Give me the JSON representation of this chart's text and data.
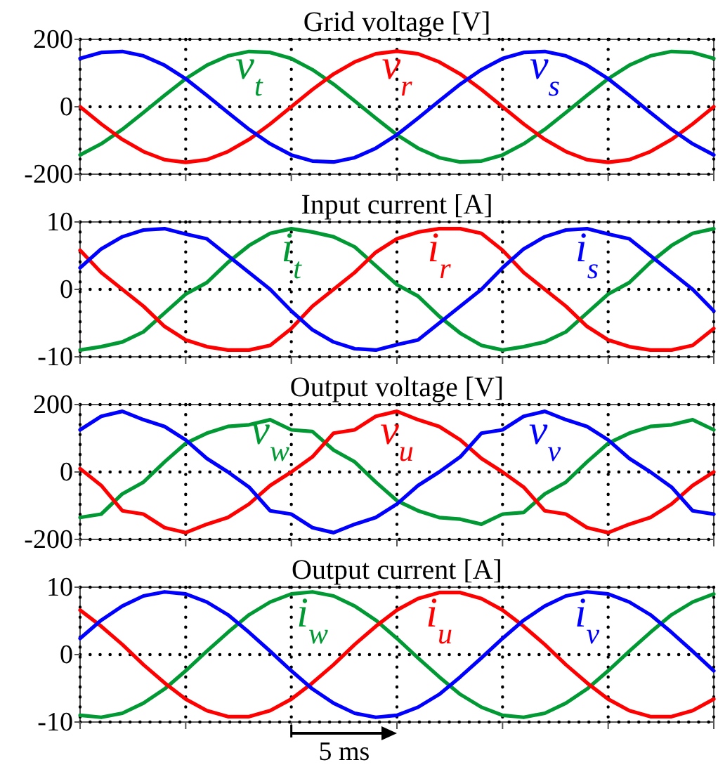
{
  "chart_data": [
    {
      "type": "line",
      "title": "Grid voltage [V]",
      "categories": [
        null,
        null,
        null,
        null,
        null,
        null,
        null,
        null,
        null,
        null,
        null,
        null,
        null,
        null,
        null,
        null,
        null,
        null,
        null,
        null,
        null,
        null,
        null,
        null,
        null,
        null,
        null,
        null,
        null,
        null,
        null
      ],
      "ylim": [
        -200,
        200
      ],
      "yticks": [
        -200,
        0,
        200
      ],
      "grid": true,
      "tick_labels": "y",
      "series": [
        {
          "name": "v$_{t}$",
          "color": "#009933",
          "values": [
            -143,
            -110,
            -67,
            -17,
            34,
            83,
            123,
            151,
            164,
            161,
            143,
            110,
            67,
            17,
            -34,
            -83,
            -123,
            -151,
            -164,
            -161,
            -143,
            -110,
            -67,
            -17,
            34,
            83,
            123,
            151,
            164,
            161,
            143
          ]
        },
        {
          "name": "v$_{r}$",
          "color": "#ff0000",
          "values": [
            0,
            -51,
            -97,
            -133,
            -157,
            -165,
            -157,
            -133,
            -97,
            -51,
            0,
            51,
            97,
            133,
            157,
            165,
            157,
            133,
            97,
            51,
            0,
            -51,
            -97,
            -133,
            -157,
            -165,
            -157,
            -133,
            -97,
            -51,
            0
          ]
        },
        {
          "name": "v$_{s}$",
          "color": "#0000ff",
          "values": [
            143,
            161,
            164,
            151,
            123,
            83,
            34,
            -17,
            -67,
            -110,
            -143,
            -161,
            -164,
            -151,
            -123,
            -83,
            -34,
            17,
            67,
            110,
            143,
            161,
            164,
            151,
            123,
            83,
            34,
            -17,
            -67,
            -110,
            -143
          ]
        }
      ]
    },
    {
      "type": "line",
      "title": "Input current [A]",
      "categories": [
        null,
        null,
        null,
        null,
        null,
        null,
        null,
        null,
        null,
        null,
        null,
        null,
        null,
        null,
        null,
        null,
        null,
        null,
        null,
        null,
        null,
        null,
        null,
        null,
        null,
        null,
        null,
        null,
        null,
        null,
        null
      ],
      "ylim": [
        -10,
        10
      ],
      "yticks": [
        -10,
        0,
        10
      ],
      "grid": true,
      "tick_labels": "y",
      "series": [
        {
          "name": "i$_{t}$",
          "color": "#009933",
          "values": [
            -9,
            -8.5,
            -7.8,
            -6.3,
            -3.5,
            -0.7,
            1,
            4,
            6.5,
            8.3,
            9,
            8.5,
            7.8,
            6.3,
            3.5,
            0.7,
            -1,
            -4,
            -6.5,
            -8.3,
            -9,
            -8.5,
            -7.8,
            -6.3,
            -3.5,
            -0.7,
            1,
            4,
            6.5,
            8.3,
            9
          ]
        },
        {
          "name": "i$_{r}$",
          "color": "#ff0000",
          "values": [
            5.8,
            2.5,
            0,
            -2.5,
            -5.5,
            -7.5,
            -8.5,
            -9,
            -9,
            -8.3,
            -5.8,
            -2.5,
            0,
            2.5,
            5.5,
            7.5,
            8.5,
            9,
            9,
            8.3,
            5.8,
            2.5,
            0,
            -2.5,
            -5.5,
            -7.5,
            -8.5,
            -9,
            -9,
            -8.3,
            -5.8
          ]
        },
        {
          "name": "i$_{s}$",
          "color": "#0000ff",
          "values": [
            3.2,
            6,
            7.8,
            8.8,
            9,
            8.2,
            7.5,
            5,
            2.5,
            0,
            -3.2,
            -6,
            -7.8,
            -8.8,
            -9,
            -8.2,
            -7.5,
            -5,
            -2.5,
            0,
            3.2,
            6,
            7.8,
            8.8,
            9,
            8.2,
            7.5,
            5,
            2.5,
            0,
            -3.2
          ]
        }
      ]
    },
    {
      "type": "line",
      "title": "Output voltage [V]",
      "categories": [
        null,
        null,
        null,
        null,
        null,
        null,
        null,
        null,
        null,
        null,
        null,
        null,
        null,
        null,
        null,
        null,
        null,
        null,
        null,
        null,
        null,
        null,
        null,
        null,
        null,
        null,
        null,
        null,
        null,
        null,
        null
      ],
      "ylim": [
        -200,
        200
      ],
      "yticks": [
        -200,
        0,
        200
      ],
      "grid": true,
      "tick_labels": "y",
      "series": [
        {
          "name": "v$_{w}$",
          "color": "#009933",
          "values": [
            -135,
            -125,
            -65,
            -30,
            30,
            85,
            115,
            135,
            140,
            155,
            125,
            120,
            65,
            30,
            -30,
            -85,
            -115,
            -135,
            -140,
            -155,
            -125,
            -120,
            -65,
            -30,
            30,
            85,
            115,
            135,
            140,
            155,
            125
          ]
        },
        {
          "name": "v$_{u}$",
          "color": "#ff0000",
          "values": [
            10,
            -40,
            -115,
            -125,
            -165,
            -180,
            -155,
            -135,
            -95,
            -40,
            0,
            45,
            115,
            125,
            165,
            180,
            155,
            135,
            95,
            40,
            0,
            -45,
            -115,
            -125,
            -165,
            -180,
            -155,
            -135,
            -95,
            -40,
            0
          ]
        },
        {
          "name": "v$_{v}$",
          "color": "#0000ff",
          "values": [
            125,
            165,
            180,
            155,
            135,
            95,
            40,
            0,
            -45,
            -115,
            -125,
            -165,
            -180,
            -155,
            -135,
            -95,
            -40,
            0,
            45,
            115,
            125,
            165,
            180,
            155,
            135,
            95,
            40,
            0,
            -45,
            -115,
            -125
          ]
        }
      ]
    },
    {
      "type": "line",
      "title": "Output current [A]",
      "categories": [
        null,
        null,
        null,
        null,
        null,
        null,
        null,
        null,
        null,
        null,
        null,
        null,
        null,
        null,
        null,
        null,
        null,
        null,
        null,
        null,
        null,
        null,
        null,
        null,
        null,
        null,
        null,
        null,
        null,
        null,
        null
      ],
      "ylim": [
        -10,
        10
      ],
      "yticks": [
        -10,
        0,
        10
      ],
      "grid": true,
      "tick_labels": "y",
      "annotations": [
        "5 ms"
      ],
      "series": [
        {
          "name": "i$_{w}$",
          "color": "#009933",
          "values": [
            -9,
            -9.3,
            -8.7,
            -7.2,
            -5.1,
            -2.4,
            0.5,
            3.3,
            5.9,
            7.8,
            9,
            9.3,
            8.7,
            7.2,
            5.1,
            2.4,
            -0.5,
            -3.3,
            -5.9,
            -7.8,
            -9,
            -9.3,
            -8.7,
            -7.2,
            -5.1,
            -2.4,
            0.5,
            3.3,
            5.9,
            7.8,
            9
          ]
        },
        {
          "name": "i$_{u}$",
          "color": "#ff0000",
          "values": [
            6.6,
            4.2,
            1.5,
            -1.5,
            -4.2,
            -6.6,
            -8.3,
            -9.2,
            -9.2,
            -8.3,
            -6.6,
            -4.2,
            -1.5,
            1.5,
            4.2,
            6.6,
            8.3,
            9.2,
            9.2,
            8.3,
            6.6,
            4.2,
            1.5,
            -1.5,
            -4.2,
            -6.6,
            -8.3,
            -9.2,
            -9.2,
            -8.3,
            -6.6
          ]
        },
        {
          "name": "i$_{v}$",
          "color": "#0000ff",
          "values": [
            2.4,
            5.1,
            7.2,
            8.7,
            9.3,
            9,
            7.8,
            5.9,
            3.3,
            0.5,
            -2.4,
            -5.1,
            -7.2,
            -8.7,
            -9.3,
            -9,
            -7.8,
            -5.9,
            -3.3,
            -0.5,
            2.4,
            5.1,
            7.2,
            8.7,
            9.3,
            9,
            7.8,
            5.9,
            3.3,
            0.5,
            -2.4
          ]
        }
      ]
    }
  ]
}
